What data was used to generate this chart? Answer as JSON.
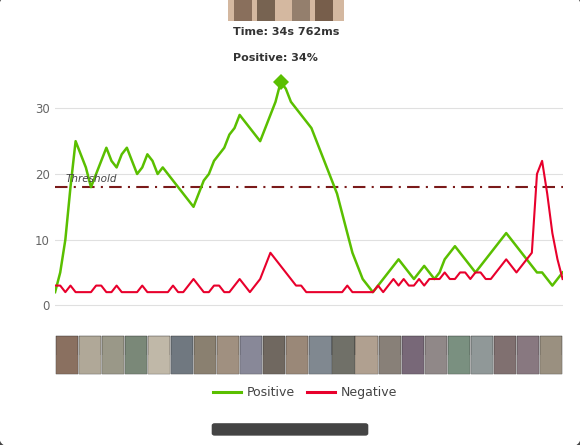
{
  "threshold": 18,
  "threshold_label": "Threshold",
  "ylim": [
    -4,
    36
  ],
  "yticks": [
    0,
    10,
    20,
    30
  ],
  "positive_color": "#5abf00",
  "negative_color": "#e8002c",
  "threshold_color": "#7a1a1a",
  "tablet_bg": "#ffffff",
  "outer_bg": "#1a1a1a",
  "legend_positive": "Positive",
  "legend_negative": "Negative",
  "tooltip_time": "Time: 34s 762ms",
  "tooltip_positive": "Positive: 34%",
  "peak_idx": 44,
  "positive_data": [
    2,
    5,
    10,
    18,
    25,
    23,
    21,
    18,
    20,
    22,
    24,
    22,
    21,
    23,
    24,
    22,
    20,
    21,
    23,
    22,
    20,
    21,
    20,
    19,
    18,
    17,
    16,
    15,
    17,
    19,
    20,
    22,
    23,
    24,
    26,
    27,
    29,
    28,
    27,
    26,
    25,
    27,
    29,
    31,
    34,
    33,
    31,
    30,
    29,
    28,
    27,
    25,
    23,
    21,
    19,
    17,
    14,
    11,
    8,
    6,
    4,
    3,
    2,
    3,
    4,
    5,
    6,
    7,
    6,
    5,
    4,
    5,
    6,
    5,
    4,
    5,
    7,
    8,
    9,
    8,
    7,
    6,
    5,
    6,
    7,
    8,
    9,
    10,
    11,
    10,
    9,
    8,
    7,
    6,
    5,
    5,
    4,
    3,
    4,
    5
  ],
  "negative_data": [
    3,
    3,
    2,
    3,
    2,
    2,
    2,
    2,
    3,
    3,
    2,
    2,
    3,
    2,
    2,
    2,
    2,
    3,
    2,
    2,
    2,
    2,
    2,
    3,
    2,
    2,
    3,
    4,
    3,
    2,
    2,
    3,
    3,
    2,
    2,
    3,
    4,
    3,
    2,
    3,
    4,
    6,
    8,
    7,
    6,
    5,
    4,
    3,
    3,
    2,
    2,
    2,
    2,
    2,
    2,
    2,
    2,
    3,
    2,
    2,
    2,
    2,
    2,
    3,
    2,
    3,
    4,
    3,
    4,
    3,
    3,
    4,
    3,
    4,
    4,
    4,
    5,
    4,
    4,
    5,
    5,
    4,
    5,
    5,
    4,
    4,
    5,
    6,
    7,
    6,
    5,
    6,
    7,
    8,
    20,
    22,
    17,
    11,
    7,
    4
  ],
  "strip_colors": [
    "#8a7060",
    "#b0a898",
    "#9a9888",
    "#7a8878",
    "#c0b8a8",
    "#707880",
    "#8a8070",
    "#a09080",
    "#888898",
    "#706860",
    "#9a8878",
    "#808890",
    "#707068",
    "#b0a090",
    "#888078",
    "#786878",
    "#908888",
    "#7a9080",
    "#909898",
    "#807070",
    "#887880",
    "#9a9080"
  ]
}
